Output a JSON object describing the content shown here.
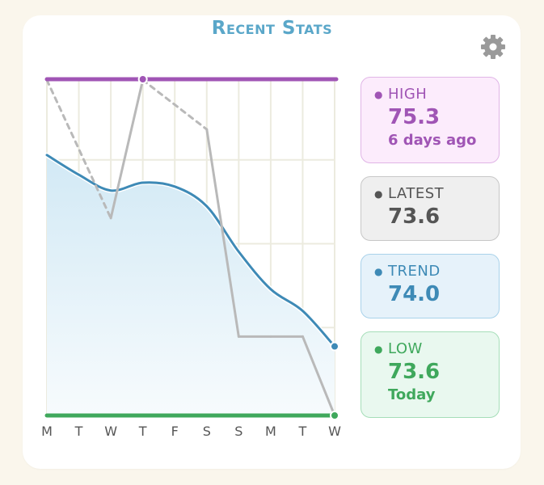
{
  "header": {
    "title": "Recent Stats",
    "settings_icon": "gear-icon"
  },
  "stats": {
    "high": {
      "label": "HIGH",
      "value": "75.3",
      "sub": "6 days ago"
    },
    "latest": {
      "label": "LATEST",
      "value": "73.6"
    },
    "trend": {
      "label": "TREND",
      "value": "74.0"
    },
    "low": {
      "label": "LOW",
      "value": "73.6",
      "sub": "Today"
    }
  },
  "colors": {
    "high": "#a055b5",
    "low": "#3fa85c",
    "trend": "#3e8ab6",
    "actual": "#b9b9b9",
    "title": "#5aa7c9"
  },
  "chart_data": {
    "type": "line",
    "categories": [
      "M",
      "T",
      "W",
      "T",
      "F",
      "S",
      "S",
      "M",
      "T",
      "W"
    ],
    "ylim": [
      73.6,
      75.3
    ],
    "high_line": 75.3,
    "low_line": 73.6,
    "grid": true,
    "series": [
      {
        "values": [
          75.3,
          null,
          74.6,
          75.3,
          null,
          75.05,
          74.0,
          74.0,
          74.0,
          73.6
        ],
        "missing_days": [
          1,
          4
        ]
      },
      {
        "values": [
          74.92,
          74.82,
          74.74,
          74.78,
          74.76,
          74.66,
          74.43,
          74.24,
          74.13,
          73.95
        ]
      }
    ]
  }
}
